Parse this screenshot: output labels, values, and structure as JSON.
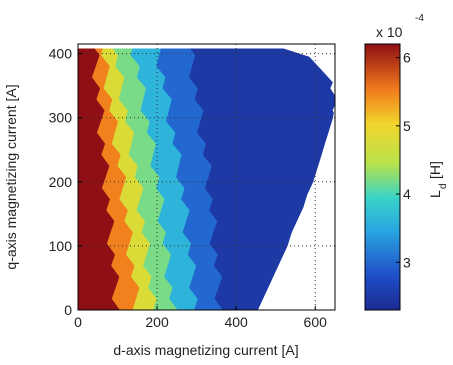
{
  "chart_data": {
    "type": "heatmap",
    "xlabel": "d-axis magnetizing current [A]",
    "ylabel": "q-axis magnetizing current [A]",
    "xlim": [
      0,
      650
    ],
    "ylim": [
      0,
      415
    ],
    "x_ticks": [
      0,
      200,
      400,
      600
    ],
    "y_ticks": [
      0,
      100,
      200,
      300,
      400
    ],
    "grid": "dotted",
    "colorbar": {
      "label_main": "L",
      "label_sub": "d",
      "label_unit": "[H]",
      "exponent_prefix": "x 10",
      "exponent": "-4",
      "range": [
        2.3,
        6.2
      ],
      "ticks": [
        3,
        4,
        5,
        6
      ],
      "colormap": "jet"
    },
    "valid_region_boundary": [
      [
        0,
        0
      ],
      [
        455,
        0
      ],
      [
        470,
        20
      ],
      [
        485,
        40
      ],
      [
        500,
        60
      ],
      [
        515,
        80
      ],
      [
        530,
        100
      ],
      [
        540,
        120
      ],
      [
        555,
        140
      ],
      [
        570,
        160
      ],
      [
        580,
        180
      ],
      [
        595,
        200
      ],
      [
        605,
        220
      ],
      [
        615,
        240
      ],
      [
        625,
        260
      ],
      [
        635,
        280
      ],
      [
        645,
        300
      ],
      [
        650,
        320
      ],
      [
        650,
        340
      ],
      [
        645,
        355
      ],
      [
        615,
        375
      ],
      [
        585,
        395
      ],
      [
        520,
        408
      ],
      [
        0,
        408
      ]
    ],
    "color_zones": [
      {
        "x_at_y0": 100,
        "x_at_y_mid": 70,
        "x_at_y_top": 40,
        "value": 6.2
      },
      {
        "x_at_y0": 150,
        "x_at_y_mid": 110,
        "x_at_y_top": 60,
        "value": 5.5
      },
      {
        "x_at_y0": 190,
        "x_at_y_mid": 150,
        "x_at_y_top": 90,
        "value": 4.8
      },
      {
        "x_at_y0": 240,
        "x_at_y_mid": 200,
        "x_at_y_top": 140,
        "value": 4.2
      },
      {
        "x_at_y0": 300,
        "x_at_y_mid": 260,
        "x_at_y_top": 200,
        "value": 3.6
      },
      {
        "x_at_y0": 360,
        "x_at_y_mid": 330,
        "x_at_y_top": 280,
        "value": 3.0
      },
      {
        "x_at_y0": 650,
        "x_at_y_mid": 650,
        "x_at_y_top": 650,
        "value": 2.5
      }
    ]
  }
}
